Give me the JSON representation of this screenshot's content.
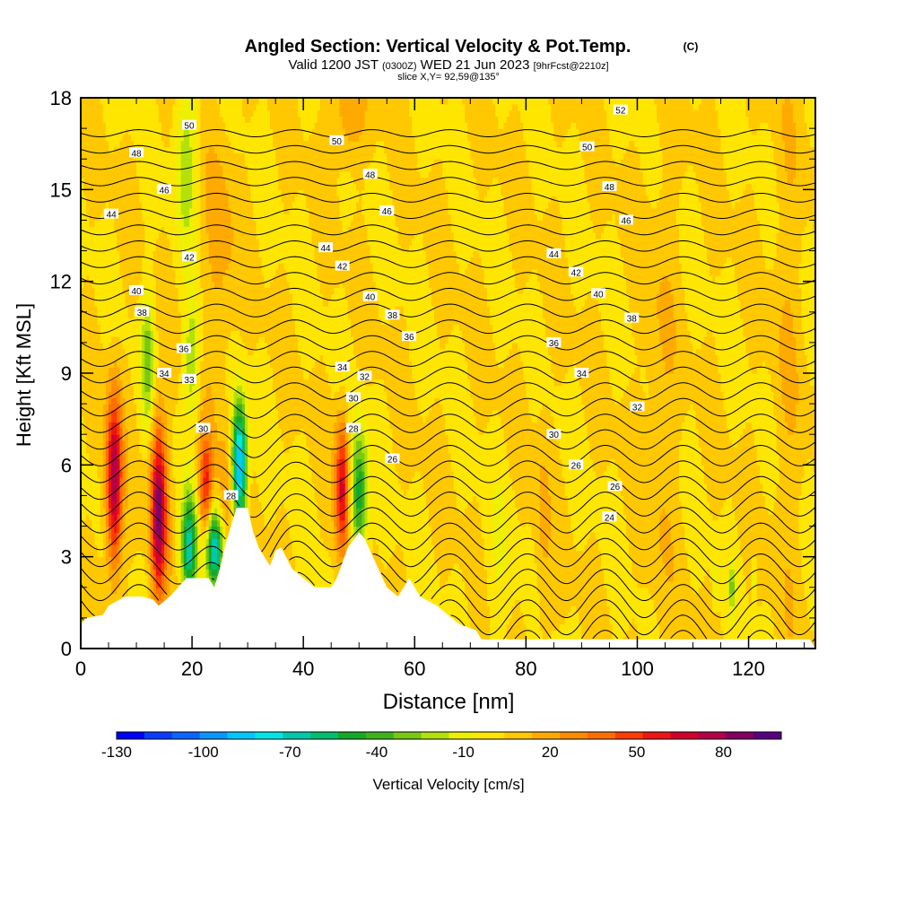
{
  "chart_data": {
    "type": "heatmap",
    "title": "Angled Section: Vertical Velocity & Pot.Temp.",
    "title_badge": "(C)",
    "valid_prefix": "Valid 1200 JST",
    "valid_utc": "(0300Z)",
    "valid_date": "WED 21 Jun 2023",
    "forecast_tag": "[9hrFcst@2210z]",
    "slice_info": "slice X,Y= 92,59@135°",
    "xlabel": "Distance [nm]",
    "ylabel": "Height [Kft MSL]",
    "xlim": [
      0,
      132
    ],
    "ylim": [
      0,
      18
    ],
    "x_ticks": [
      "0",
      "20",
      "40",
      "60",
      "80",
      "100",
      "120"
    ],
    "y_ticks": [
      "0",
      "3",
      "6",
      "9",
      "12",
      "15",
      "18"
    ],
    "colorbar": {
      "label": "Vertical Velocity [cm/s]",
      "range": [
        -130,
        100
      ],
      "step": 10,
      "tick_labels": [
        "-130",
        "-100",
        "-70",
        "-40",
        "-10",
        "20",
        "50",
        "80"
      ],
      "colors": [
        "#0000ff",
        "#0a3cff",
        "#0a64ff",
        "#0a96ff",
        "#00c8ff",
        "#00e6e6",
        "#00c8aa",
        "#00be6e",
        "#14aa28",
        "#3cb41e",
        "#78c814",
        "#b4e10a",
        "#eef000",
        "#ffe600",
        "#ffc800",
        "#ffaa00",
        "#ff8c00",
        "#ff6e00",
        "#ff3c00",
        "#f01414",
        "#d2002d",
        "#b40046",
        "#820064",
        "#5a0082"
      ]
    },
    "theta_contours": [
      {
        "label": "24",
        "x": 95,
        "y": 4.3
      },
      {
        "label": "26",
        "x": 96,
        "y": 5.3
      },
      {
        "label": "26",
        "x": 89,
        "y": 6.0
      },
      {
        "label": "26",
        "x": 56,
        "y": 6.2
      },
      {
        "label": "28",
        "x": 27,
        "y": 5.0
      },
      {
        "label": "28",
        "x": 49,
        "y": 7.2
      },
      {
        "label": "30",
        "x": 22,
        "y": 7.2
      },
      {
        "label": "30",
        "x": 85,
        "y": 7.0
      },
      {
        "label": "30",
        "x": 49,
        "y": 8.2
      },
      {
        "label": "32",
        "x": 100,
        "y": 7.9
      },
      {
        "label": "32",
        "x": 51,
        "y": 8.9
      },
      {
        "label": "33",
        "x": 19.5,
        "y": 8.8
      },
      {
        "label": "34",
        "x": 15,
        "y": 9.0
      },
      {
        "label": "34",
        "x": 47,
        "y": 9.2
      },
      {
        "label": "34",
        "x": 90,
        "y": 9.0
      },
      {
        "label": "36",
        "x": 18.5,
        "y": 9.8
      },
      {
        "label": "36",
        "x": 59,
        "y": 10.2
      },
      {
        "label": "36",
        "x": 85,
        "y": 10.0
      },
      {
        "label": "38",
        "x": 11,
        "y": 11.0
      },
      {
        "label": "38",
        "x": 56,
        "y": 10.9
      },
      {
        "label": "38",
        "x": 99,
        "y": 10.8
      },
      {
        "label": "40",
        "x": 10,
        "y": 11.7
      },
      {
        "label": "40",
        "x": 52,
        "y": 11.5
      },
      {
        "label": "40",
        "x": 93,
        "y": 11.6
      },
      {
        "label": "42",
        "x": 19.5,
        "y": 12.8
      },
      {
        "label": "42",
        "x": 47,
        "y": 12.5
      },
      {
        "label": "42",
        "x": 89,
        "y": 12.3
      },
      {
        "label": "44",
        "x": 5.5,
        "y": 14.2
      },
      {
        "label": "44",
        "x": 44,
        "y": 13.1
      },
      {
        "label": "44",
        "x": 85,
        "y": 12.9
      },
      {
        "label": "46",
        "x": 15,
        "y": 15.0
      },
      {
        "label": "46",
        "x": 55,
        "y": 14.3
      },
      {
        "label": "46",
        "x": 98,
        "y": 14.0
      },
      {
        "label": "48",
        "x": 10,
        "y": 16.2
      },
      {
        "label": "48",
        "x": 52,
        "y": 15.5
      },
      {
        "label": "48",
        "x": 95,
        "y": 15.1
      },
      {
        "label": "50",
        "x": 19.5,
        "y": 17.1
      },
      {
        "label": "50",
        "x": 46,
        "y": 16.6
      },
      {
        "label": "50",
        "x": 91,
        "y": 16.4
      },
      {
        "label": "52",
        "x": 97,
        "y": 17.6
      }
    ]
  }
}
